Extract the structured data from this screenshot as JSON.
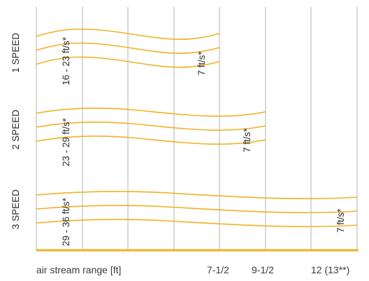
{
  "chart_data": {
    "type": "line",
    "title": "",
    "xlabel": "air stream range [ft]",
    "x_ticks": [
      "7-1/2",
      "9-1/2",
      "12 (13**)"
    ],
    "grid": true,
    "series": [
      {
        "name": "1 SPEED",
        "initial_velocity": "16 - 23 ft/s*",
        "terminal_velocity": "7 ft/s*",
        "range_ft": "7-1/2"
      },
      {
        "name": "2 SPEED",
        "initial_velocity": "23 - 29 ft/s*",
        "terminal_velocity": "7 ft/s*",
        "range_ft": "9-1/2"
      },
      {
        "name": "3 SPEED",
        "initial_velocity": "29 - 36 ft/s*",
        "terminal_velocity": "7 ft/s*",
        "range_ft": "12 (13**)"
      }
    ],
    "colors": {
      "stream": "#f2b01e",
      "grid": "#bdbdbd",
      "text": "#2b2b2b"
    }
  }
}
